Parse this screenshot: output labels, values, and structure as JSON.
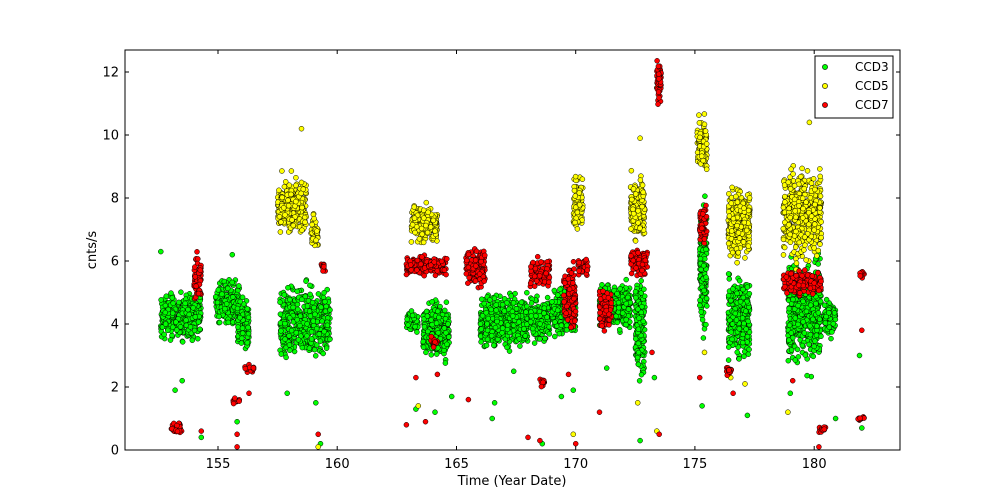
{
  "chart_data": {
    "type": "scatter",
    "title": "",
    "xlabel": "Time (Year Date)",
    "ylabel": "cnts/s",
    "xlim": [
      151.1,
      183.6
    ],
    "ylim": [
      0,
      12.7
    ],
    "xticks": [
      155,
      160,
      165,
      170,
      175,
      180
    ],
    "yticks": [
      0,
      2,
      4,
      6,
      8,
      10,
      12
    ],
    "grid": false,
    "legend_position": "top-right",
    "series": [
      {
        "name": "CCD3",
        "color": "#00ff00",
        "clusters": [
          {
            "x": [
              152.6,
              154.3
            ],
            "y": [
              3.3,
              5.2
            ]
          },
          {
            "x": [
              154.9,
              155.9
            ],
            "y": [
              3.8,
              5.6
            ]
          },
          {
            "x": [
              155.8,
              156.3
            ],
            "y": [
              2.8,
              5.0
            ]
          },
          {
            "x": [
              157.6,
              159.7
            ],
            "y": [
              2.5,
              5.6
            ]
          },
          {
            "x": [
              162.9,
              163.4
            ],
            "y": [
              3.6,
              4.6
            ]
          },
          {
            "x": [
              163.6,
              164.7
            ],
            "y": [
              2.6,
              5.0
            ]
          },
          {
            "x": [
              166.0,
              168.0
            ],
            "y": [
              3.0,
              5.2
            ]
          },
          {
            "x": [
              168.1,
              168.9
            ],
            "y": [
              3.2,
              5.0
            ]
          },
          {
            "x": [
              169.0,
              170.0
            ],
            "y": [
              3.4,
              5.4
            ]
          },
          {
            "x": [
              171.0,
              172.3
            ],
            "y": [
              3.6,
              5.6
            ]
          },
          {
            "x": [
              172.5,
              172.9
            ],
            "y": [
              1.8,
              6.0
            ]
          },
          {
            "x": [
              175.2,
              175.5
            ],
            "y": [
              3.2,
              8.4
            ]
          },
          {
            "x": [
              176.4,
              177.3
            ],
            "y": [
              2.6,
              5.8
            ]
          },
          {
            "x": [
              178.9,
              180.3
            ],
            "y": [
              2.2,
              6.5
            ]
          },
          {
            "x": [
              180.4,
              180.9
            ],
            "y": [
              3.4,
              5.0
            ]
          }
        ],
        "outliers": [
          [
            152.6,
            6.3
          ],
          [
            153.2,
            1.9
          ],
          [
            153.5,
            2.2
          ],
          [
            154.3,
            0.4
          ],
          [
            155.6,
            6.2
          ],
          [
            155.8,
            0.9
          ],
          [
            157.9,
            1.8
          ],
          [
            159.1,
            1.5
          ],
          [
            159.3,
            0.2
          ],
          [
            163.3,
            1.3
          ],
          [
            164.1,
            1.2
          ],
          [
            164.8,
            1.7
          ],
          [
            166.6,
            1.5
          ],
          [
            166.5,
            1.0
          ],
          [
            167.4,
            2.5
          ],
          [
            168.6,
            0.2
          ],
          [
            169.4,
            1.7
          ],
          [
            169.9,
            1.9
          ],
          [
            171.3,
            2.6
          ],
          [
            172.7,
            0.3
          ],
          [
            173.3,
            2.3
          ],
          [
            175.3,
            1.4
          ],
          [
            177.2,
            1.1
          ],
          [
            179.0,
            1.8
          ],
          [
            180.9,
            1.0
          ],
          [
            181.9,
            3.0
          ],
          [
            182.0,
            0.7
          ]
        ]
      },
      {
        "name": "CCD5",
        "color": "#ffff00",
        "clusters": [
          {
            "x": [
              157.5,
              158.7
            ],
            "y": [
              6.6,
              8.9
            ]
          },
          {
            "x": [
              158.9,
              159.2
            ],
            "y": [
              6.2,
              7.7
            ]
          },
          {
            "x": [
              163.1,
              164.2
            ],
            "y": [
              6.4,
              8.0
            ]
          },
          {
            "x": [
              169.9,
              170.3
            ],
            "y": [
              6.8,
              9.0
            ]
          },
          {
            "x": [
              172.3,
              172.9
            ],
            "y": [
              6.4,
              9.0
            ]
          },
          {
            "x": [
              175.1,
              175.5
            ],
            "y": [
              8.4,
              10.8
            ]
          },
          {
            "x": [
              176.4,
              177.3
            ],
            "y": [
              5.8,
              8.6
            ]
          },
          {
            "x": [
              178.7,
              180.3
            ],
            "y": [
              5.6,
              9.4
            ]
          }
        ],
        "outliers": [
          [
            158.5,
            10.2
          ],
          [
            159.2,
            0.1
          ],
          [
            163.4,
            1.4
          ],
          [
            169.9,
            0.5
          ],
          [
            172.7,
            9.9
          ],
          [
            172.6,
            1.5
          ],
          [
            173.4,
            0.6
          ],
          [
            173.4,
            11.5
          ],
          [
            175.4,
            3.1
          ],
          [
            176.5,
            2.3
          ],
          [
            177.1,
            2.1
          ],
          [
            178.9,
            1.2
          ],
          [
            179.8,
            10.4
          ]
        ]
      },
      {
        "name": "CCD7",
        "color": "#ff0000",
        "clusters": [
          {
            "x": [
              153.0,
              153.5
            ],
            "y": [
              0.4,
              0.9
            ]
          },
          {
            "x": [
              154.0,
              154.3
            ],
            "y": [
              4.6,
              6.4
            ]
          },
          {
            "x": [
              155.6,
              155.9
            ],
            "y": [
              1.4,
              1.7
            ]
          },
          {
            "x": [
              156.1,
              156.5
            ],
            "y": [
              2.4,
              2.8
            ]
          },
          {
            "x": [
              159.3,
              159.5
            ],
            "y": [
              5.6,
              6.0
            ]
          },
          {
            "x": [
              162.9,
              164.6
            ],
            "y": [
              5.4,
              6.3
            ]
          },
          {
            "x": [
              163.9,
              164.2
            ],
            "y": [
              3.2,
              3.7
            ]
          },
          {
            "x": [
              165.4,
              166.2
            ],
            "y": [
              5.0,
              6.6
            ]
          },
          {
            "x": [
              168.1,
              168.9
            ],
            "y": [
              5.0,
              6.2
            ]
          },
          {
            "x": [
              168.5,
              168.7
            ],
            "y": [
              1.9,
              2.4
            ]
          },
          {
            "x": [
              169.5,
              170.0
            ],
            "y": [
              3.6,
              6.2
            ]
          },
          {
            "x": [
              170.1,
              170.5
            ],
            "y": [
              5.4,
              6.2
            ]
          },
          {
            "x": [
              171.0,
              171.5
            ],
            "y": [
              3.6,
              5.3
            ]
          },
          {
            "x": [
              172.3,
              173.0
            ],
            "y": [
              5.4,
              6.5
            ]
          },
          {
            "x": [
              173.4,
              173.6
            ],
            "y": [
              10.8,
              12.7
            ]
          },
          {
            "x": [
              175.2,
              175.5
            ],
            "y": [
              6.3,
              8.0
            ]
          },
          {
            "x": [
              176.3,
              176.6
            ],
            "y": [
              2.3,
              2.7
            ]
          },
          {
            "x": [
              178.7,
              180.3
            ],
            "y": [
              4.8,
              5.8
            ]
          },
          {
            "x": [
              180.2,
              180.5
            ],
            "y": [
              0.5,
              0.8
            ]
          },
          {
            "x": [
              181.8,
              182.1
            ],
            "y": [
              0.9,
              1.1
            ]
          },
          {
            "x": [
              181.9,
              182.1
            ],
            "y": [
              5.4,
              5.8
            ]
          }
        ],
        "outliers": [
          [
            154.3,
            0.6
          ],
          [
            155.8,
            0.5
          ],
          [
            155.8,
            0.1
          ],
          [
            156.3,
            1.8
          ],
          [
            159.2,
            0.5
          ],
          [
            162.9,
            0.8
          ],
          [
            163.3,
            2.3
          ],
          [
            163.7,
            0.9
          ],
          [
            164.2,
            2.4
          ],
          [
            165.5,
            1.6
          ],
          [
            168.0,
            0.4
          ],
          [
            168.5,
            0.3
          ],
          [
            169.7,
            2.4
          ],
          [
            170.0,
            0.2
          ],
          [
            171.0,
            1.2
          ],
          [
            173.2,
            3.1
          ],
          [
            173.5,
            0.5
          ],
          [
            175.2,
            2.3
          ],
          [
            176.6,
            1.8
          ],
          [
            179.1,
            2.2
          ],
          [
            180.2,
            0.1
          ],
          [
            182.0,
            3.8
          ]
        ]
      }
    ]
  }
}
